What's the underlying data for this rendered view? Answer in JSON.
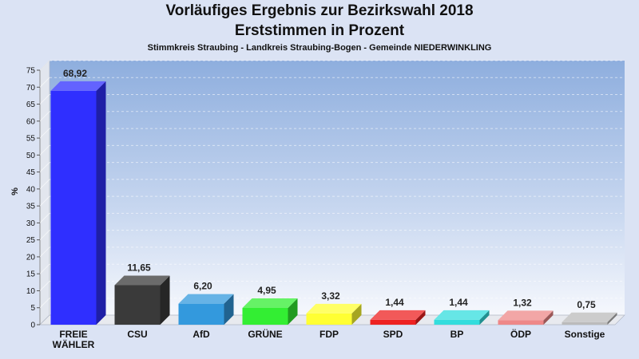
{
  "header": {
    "title_line1": "Vorläufiges Ergebnis zur Bezirkswahl 2018",
    "title_line2": "Erststimmen in Prozent",
    "subtitle": "Stimmkreis Straubing - Landkreis Straubing-Bogen - Gemeinde NIEDERWINKLING"
  },
  "chart_data": {
    "type": "bar",
    "title": "Vorläufiges Ergebnis zur Bezirkswahl 2018 Erststimmen in Prozent",
    "subtitle": "Stimmkreis Straubing - Landkreis Straubing-Bogen - Gemeinde NIEDERWINKLING",
    "ylabel": "%",
    "xlabel": "",
    "ylim": [
      0,
      75
    ],
    "yticks": [
      0,
      5,
      10,
      15,
      20,
      25,
      30,
      35,
      40,
      45,
      50,
      55,
      60,
      65,
      70,
      75
    ],
    "grid": true,
    "categories": [
      "FREIE WÄHLER",
      "CSU",
      "AfD",
      "GRÜNE",
      "FDP",
      "SPD",
      "BP",
      "ÖDP",
      "Sonstige"
    ],
    "category_lines": [
      [
        "FREIE",
        "WÄHLER"
      ],
      [
        "CSU"
      ],
      [
        "AfD"
      ],
      [
        "GRÜNE"
      ],
      [
        "FDP"
      ],
      [
        "SPD"
      ],
      [
        "BP"
      ],
      [
        "ÖDP"
      ],
      [
        "Sonstige"
      ]
    ],
    "values": [
      68.92,
      11.65,
      6.2,
      4.95,
      3.32,
      1.44,
      1.44,
      1.32,
      0.75
    ],
    "value_labels": [
      "68,92",
      "11,65",
      "6,20",
      "4,95",
      "3,32",
      "1,44",
      "1,44",
      "1,32",
      "0,75"
    ],
    "colors": [
      "#2f2fff",
      "#3a3a3a",
      "#3399dd",
      "#33ee33",
      "#ffff33",
      "#ee2222",
      "#33dddd",
      "#ee8888",
      "#bbbbbb"
    ]
  }
}
